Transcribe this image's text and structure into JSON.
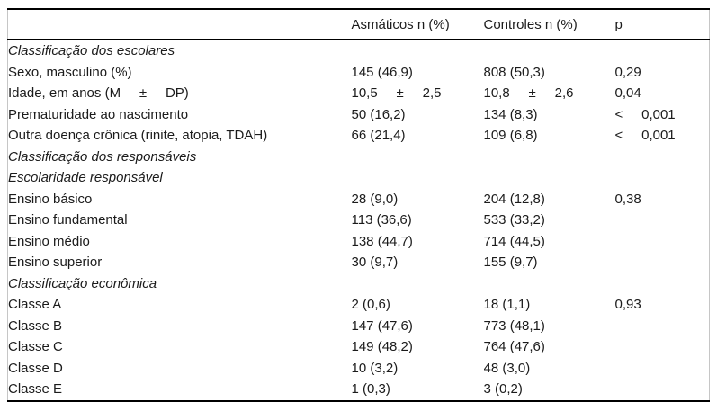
{
  "table": {
    "header": {
      "variable": "",
      "asthmatics": "Asmáticos n (%)",
      "controls": "Controles n (%)",
      "p": "p"
    },
    "rows": [
      {
        "type": "section",
        "label": "Classificação dos escolares"
      },
      {
        "type": "item",
        "label": "Sexo, masculino (%)",
        "asthmatics": "145 (46,9)",
        "controls": "808 (50,3)",
        "p": "0,29"
      },
      {
        "type": "item",
        "label": "Idade, em anos (M     ±     DP)",
        "asthmatics": "10,5     ±     2,5",
        "controls": "10,8     ±     2,6",
        "p": "0,04"
      },
      {
        "type": "item",
        "label": "Prematuridade ao nascimento",
        "asthmatics": "50 (16,2)",
        "controls": "134 (8,3)",
        "p": "<     0,001"
      },
      {
        "type": "item",
        "label": "Outra doença crônica (rinite, atopia, TDAH)",
        "asthmatics": "66 (21,4)",
        "controls": "109 (6,8)",
        "p": "<     0,001"
      },
      {
        "type": "section",
        "label": "Classificação dos responsáveis"
      },
      {
        "type": "section",
        "label": "Escolaridade responsável"
      },
      {
        "type": "item",
        "label": "Ensino básico",
        "asthmatics": "28 (9,0)",
        "controls": "204 (12,8)",
        "p": "0,38"
      },
      {
        "type": "item",
        "label": "Ensino fundamental",
        "asthmatics": "113 (36,6)",
        "controls": "533 (33,2)",
        "p": ""
      },
      {
        "type": "item",
        "label": "Ensino médio",
        "asthmatics": "138 (44,7)",
        "controls": "714 (44,5)",
        "p": ""
      },
      {
        "type": "item",
        "label": "Ensino superior",
        "asthmatics": "30 (9,7)",
        "controls": "155 (9,7)",
        "p": ""
      },
      {
        "type": "section",
        "label": "Classificação econômica"
      },
      {
        "type": "item",
        "label": "Classe A",
        "asthmatics": "2 (0,6)",
        "controls": "18 (1,1)",
        "p": "0,93"
      },
      {
        "type": "item",
        "label": "Classe B",
        "asthmatics": "147 (47,6)",
        "controls": "773 (48,1)",
        "p": ""
      },
      {
        "type": "item",
        "label": "Classe C",
        "asthmatics": "149 (48,2)",
        "controls": "764 (47,6)",
        "p": ""
      },
      {
        "type": "item",
        "label": "Classe D",
        "asthmatics": "10 (3,2)",
        "controls": "48 (3,0)",
        "p": ""
      },
      {
        "type": "item",
        "label": "Classe E",
        "asthmatics": "1 (0,3)",
        "controls": "3 (0,2)",
        "p": ""
      }
    ]
  }
}
